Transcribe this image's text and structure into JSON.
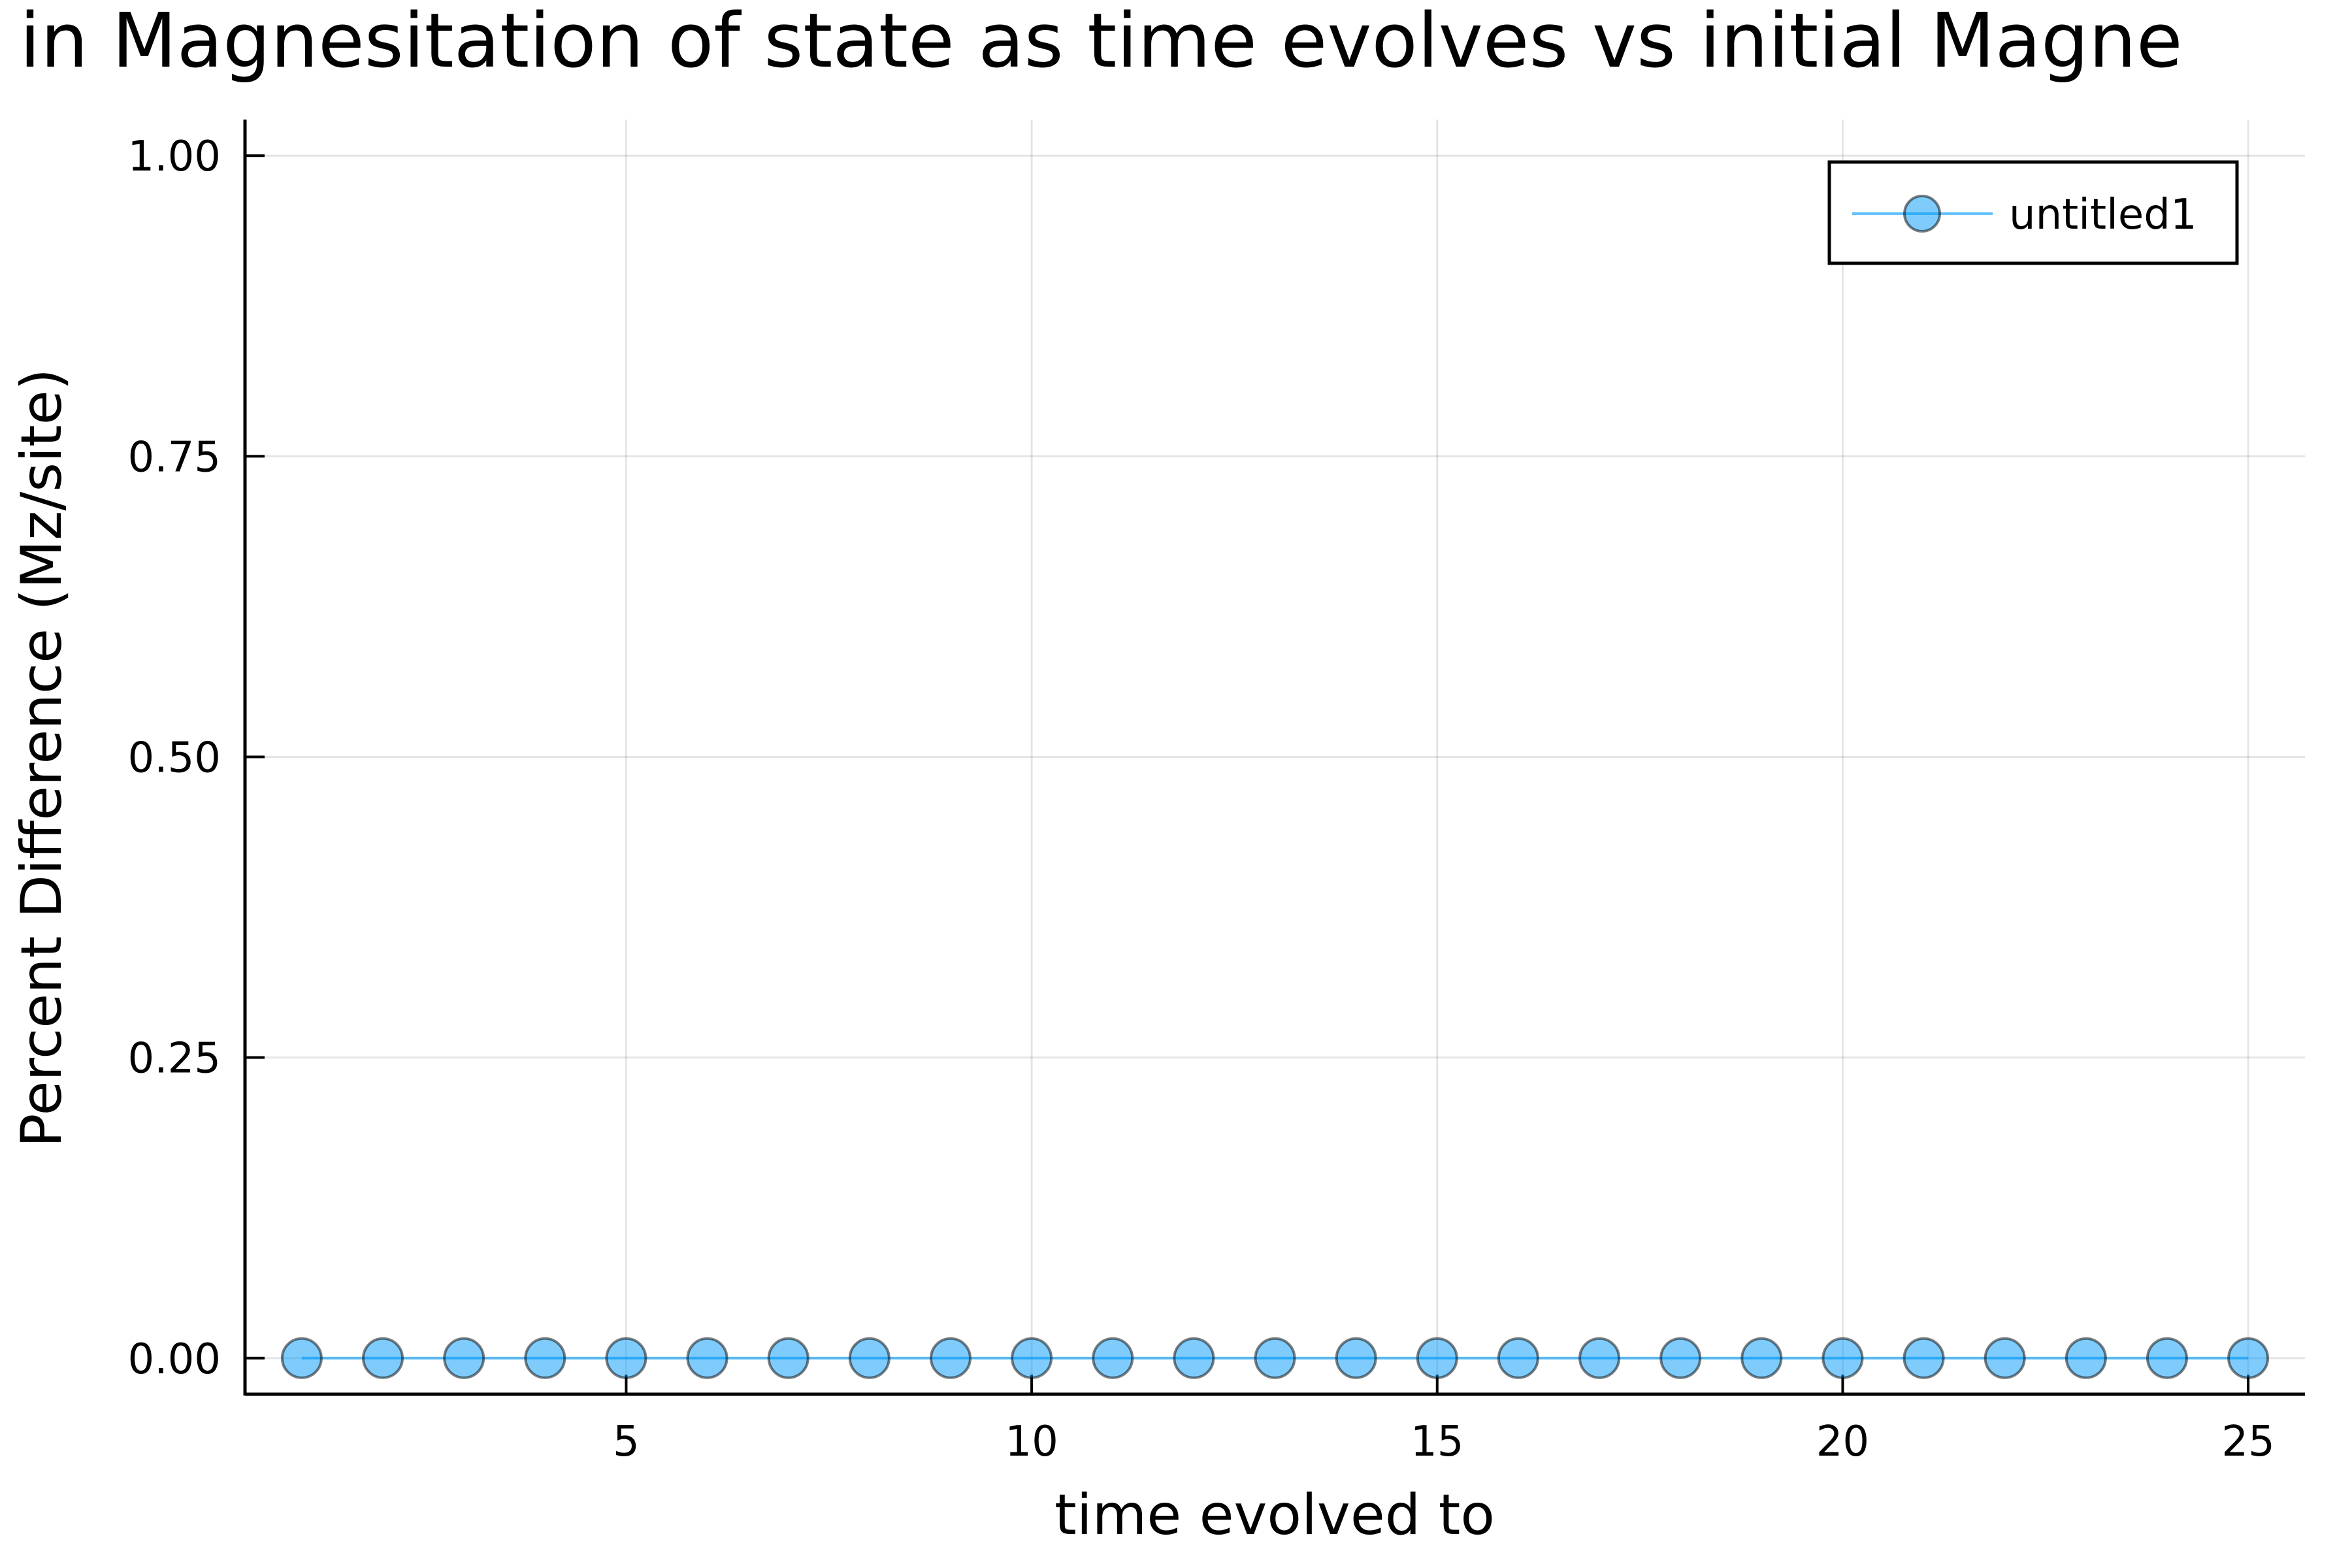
{
  "chart_data": {
    "type": "scatter",
    "title": "in Magnesitation of state as time evolves vs initial Magne",
    "xlabel": "time evolved to",
    "ylabel": "Percent Difference (Mz/site)",
    "xlim": [
      0.3,
      25.7
    ],
    "ylim": [
      -0.03,
      1.03
    ],
    "x_ticks": [
      5,
      10,
      15,
      20,
      25
    ],
    "x_tick_labels": [
      "5",
      "10",
      "15",
      "20",
      "25"
    ],
    "y_ticks": [
      0,
      0.25,
      0.5,
      0.75,
      1.0
    ],
    "y_tick_labels": [
      "0.00",
      "0.25",
      "0.50",
      "0.75",
      "1.00"
    ],
    "grid": true,
    "legend_position": "top-right",
    "series": [
      {
        "name": "untitled1",
        "color": "#009af9",
        "x": [
          1,
          2,
          3,
          4,
          5,
          6,
          7,
          8,
          9,
          10,
          11,
          12,
          13,
          14,
          15,
          16,
          17,
          18,
          19,
          20,
          21,
          22,
          23,
          24,
          25
        ],
        "y": [
          0,
          0,
          0,
          0,
          0,
          0,
          0,
          0,
          0,
          0,
          0,
          0,
          0,
          0,
          0,
          0,
          0,
          0,
          0,
          0,
          0,
          0,
          0,
          0,
          0
        ]
      }
    ]
  }
}
